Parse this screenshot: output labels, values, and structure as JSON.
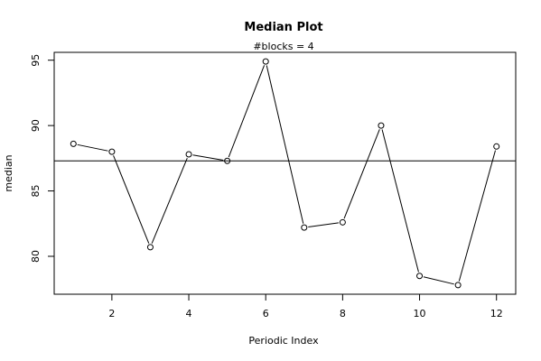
{
  "chart_data": {
    "type": "line",
    "title": "Median Plot",
    "subtitle": "#blocks =  4",
    "xlabel": "Periodic Index",
    "ylabel": "median",
    "x": [
      1,
      2,
      3,
      4,
      5,
      6,
      7,
      8,
      9,
      10,
      11,
      12
    ],
    "values": [
      88.6,
      88.0,
      80.7,
      87.8,
      87.3,
      94.9,
      82.2,
      82.6,
      90.0,
      78.5,
      77.8,
      88.4
    ],
    "reference_line": 87.3,
    "xlim": [
      0.5,
      12.5
    ],
    "ylim": [
      77.1,
      95.6
    ],
    "xticks": [
      2,
      4,
      6,
      8,
      10,
      12
    ],
    "yticks": [
      80,
      85,
      90,
      95
    ],
    "grid": false,
    "marker": "open-circle",
    "line_color": "#000000"
  }
}
